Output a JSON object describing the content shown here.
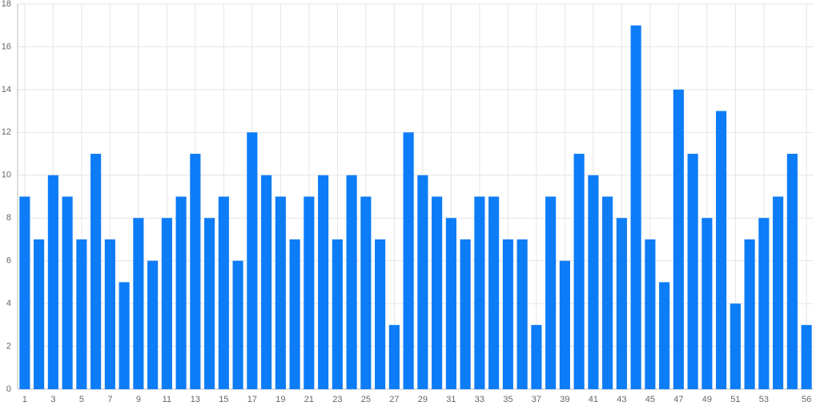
{
  "chart_data": {
    "type": "bar",
    "categories": [
      "1",
      null,
      "3",
      null,
      "5",
      null,
      "7",
      null,
      "9",
      null,
      "11",
      null,
      "13",
      null,
      "15",
      null,
      "17",
      null,
      "19",
      null,
      "21",
      null,
      "23",
      null,
      "25",
      null,
      "27",
      null,
      "29",
      null,
      "31",
      null,
      "33",
      null,
      "35",
      null,
      "37",
      null,
      "39",
      null,
      "41",
      null,
      "43",
      null,
      "45",
      null,
      "47",
      null,
      "49",
      null,
      "51",
      null,
      "53",
      null,
      null,
      "56"
    ],
    "values": [
      9,
      7,
      10,
      9,
      7,
      11,
      7,
      5,
      8,
      6,
      8,
      9,
      11,
      8,
      9,
      6,
      12,
      10,
      9,
      7,
      9,
      10,
      7,
      10,
      9,
      7,
      3,
      12,
      10,
      9,
      8,
      7,
      9,
      9,
      7,
      7,
      3,
      9,
      6,
      11,
      10,
      9,
      8,
      17,
      7,
      5,
      14,
      11,
      8,
      13,
      4,
      7,
      8,
      9,
      11,
      3
    ],
    "color": "#0d7cf7",
    "ylim": [
      0,
      18
    ],
    "yticks": [
      0,
      2,
      4,
      6,
      8,
      10,
      12,
      14,
      16,
      18
    ],
    "grid": true
  }
}
